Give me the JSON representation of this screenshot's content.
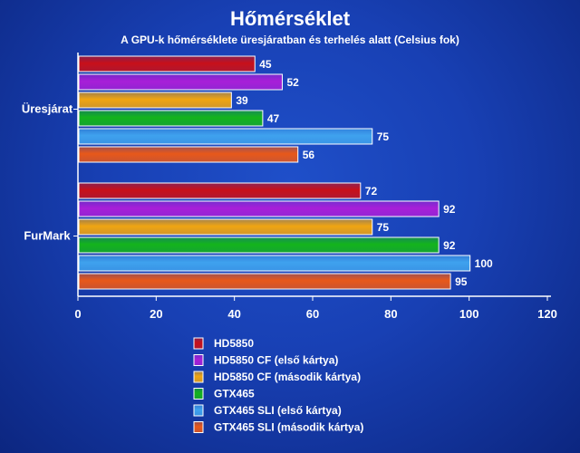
{
  "chart_data": {
    "type": "bar",
    "orientation": "horizontal",
    "title": "Hőmérséklet",
    "subtitle": "A GPU-k hőmérséklete üresjáratban és terhelés alatt (Celsius fok)",
    "categories": [
      "Üresjárat",
      "FurMark"
    ],
    "xlim": [
      0,
      120
    ],
    "xticks": [
      0,
      20,
      40,
      60,
      80,
      100,
      120
    ],
    "grid": false,
    "legend_position": "bottom",
    "series": [
      {
        "name": "HD5850",
        "values": [
          45,
          72
        ],
        "color": "#c8101a"
      },
      {
        "name": "HD5850 CF (első kártya)",
        "values": [
          52,
          92
        ],
        "color": "#a81fd8"
      },
      {
        "name": "HD5850 CF (második kártya)",
        "values": [
          39,
          75
        ],
        "color": "#f0a512"
      },
      {
        "name": "GTX465",
        "values": [
          47,
          92
        ],
        "color": "#14b41c"
      },
      {
        "name": "GTX465 SLI (első kártya)",
        "values": [
          75,
          100
        ],
        "color": "#3fa2ee"
      },
      {
        "name": "GTX465 SLI (második kártya)",
        "values": [
          56,
          95
        ],
        "color": "#e8581a"
      }
    ]
  }
}
